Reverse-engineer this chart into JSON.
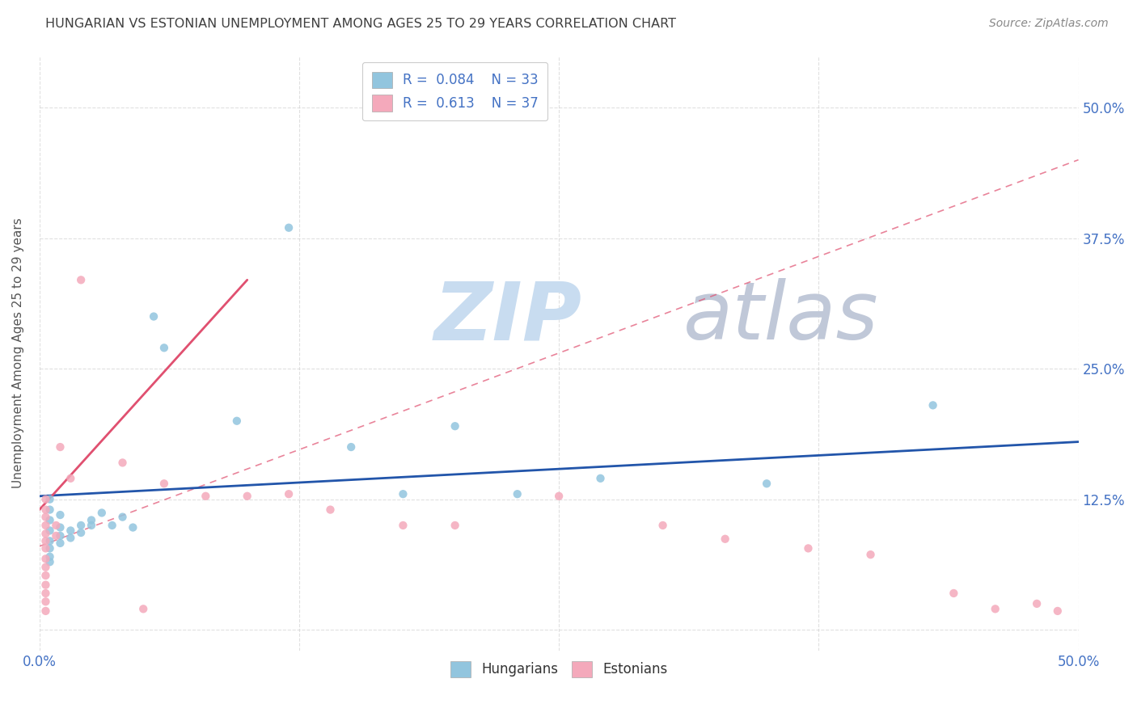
{
  "title": "HUNGARIAN VS ESTONIAN UNEMPLOYMENT AMONG AGES 25 TO 29 YEARS CORRELATION CHART",
  "source": "Source: ZipAtlas.com",
  "ylabel": "Unemployment Among Ages 25 to 29 years",
  "xlim": [
    0.0,
    0.5
  ],
  "ylim": [
    -0.02,
    0.55
  ],
  "xticks": [
    0.0,
    0.125,
    0.25,
    0.375,
    0.5
  ],
  "xticklabels": [
    "0.0%",
    "",
    "",
    "",
    "50.0%"
  ],
  "ytick_positions": [
    0.0,
    0.125,
    0.25,
    0.375,
    0.5
  ],
  "yticklabels": [
    "",
    "12.5%",
    "25.0%",
    "37.5%",
    "50.0%"
  ],
  "legend_r1": "R =  0.084",
  "legend_n1": "N = 33",
  "legend_r2": "R =  0.613",
  "legend_n2": "N = 37",
  "hungarian_color": "#92C5DE",
  "estonian_color": "#F4A9BB",
  "trendline_hungarian_color": "#2255AA",
  "trendline_estonian_color": "#E05070",
  "watermark_zip": "ZIP",
  "watermark_atlas": "atlas",
  "watermark_color_zip": "#C8DCF0",
  "watermark_color_atlas": "#C0C8D8",
  "title_color": "#404040",
  "axis_label_color": "#555555",
  "tick_color": "#4472C4",
  "hungarian_points": [
    [
      0.005,
      0.125
    ],
    [
      0.005,
      0.115
    ],
    [
      0.005,
      0.105
    ],
    [
      0.005,
      0.095
    ],
    [
      0.005,
      0.085
    ],
    [
      0.005,
      0.078
    ],
    [
      0.005,
      0.07
    ],
    [
      0.005,
      0.065
    ],
    [
      0.01,
      0.11
    ],
    [
      0.01,
      0.098
    ],
    [
      0.01,
      0.09
    ],
    [
      0.01,
      0.083
    ],
    [
      0.015,
      0.095
    ],
    [
      0.015,
      0.088
    ],
    [
      0.02,
      0.1
    ],
    [
      0.02,
      0.093
    ],
    [
      0.025,
      0.105
    ],
    [
      0.025,
      0.1
    ],
    [
      0.03,
      0.112
    ],
    [
      0.035,
      0.1
    ],
    [
      0.04,
      0.108
    ],
    [
      0.045,
      0.098
    ],
    [
      0.055,
      0.3
    ],
    [
      0.06,
      0.27
    ],
    [
      0.095,
      0.2
    ],
    [
      0.12,
      0.385
    ],
    [
      0.15,
      0.175
    ],
    [
      0.175,
      0.13
    ],
    [
      0.2,
      0.195
    ],
    [
      0.23,
      0.13
    ],
    [
      0.27,
      0.145
    ],
    [
      0.35,
      0.14
    ],
    [
      0.43,
      0.215
    ]
  ],
  "estonian_points": [
    [
      0.003,
      0.125
    ],
    [
      0.003,
      0.115
    ],
    [
      0.003,
      0.108
    ],
    [
      0.003,
      0.1
    ],
    [
      0.003,
      0.092
    ],
    [
      0.003,
      0.085
    ],
    [
      0.003,
      0.078
    ],
    [
      0.003,
      0.068
    ],
    [
      0.003,
      0.06
    ],
    [
      0.003,
      0.052
    ],
    [
      0.003,
      0.043
    ],
    [
      0.003,
      0.035
    ],
    [
      0.003,
      0.027
    ],
    [
      0.008,
      0.1
    ],
    [
      0.008,
      0.09
    ],
    [
      0.01,
      0.175
    ],
    [
      0.015,
      0.145
    ],
    [
      0.02,
      0.335
    ],
    [
      0.04,
      0.16
    ],
    [
      0.06,
      0.14
    ],
    [
      0.08,
      0.128
    ],
    [
      0.1,
      0.128
    ],
    [
      0.12,
      0.13
    ],
    [
      0.14,
      0.115
    ],
    [
      0.175,
      0.1
    ],
    [
      0.2,
      0.1
    ],
    [
      0.25,
      0.128
    ],
    [
      0.3,
      0.1
    ],
    [
      0.33,
      0.087
    ],
    [
      0.37,
      0.078
    ],
    [
      0.4,
      0.072
    ],
    [
      0.003,
      0.018
    ],
    [
      0.44,
      0.035
    ],
    [
      0.46,
      0.02
    ],
    [
      0.48,
      0.025
    ],
    [
      0.49,
      0.018
    ],
    [
      0.05,
      0.02
    ]
  ]
}
